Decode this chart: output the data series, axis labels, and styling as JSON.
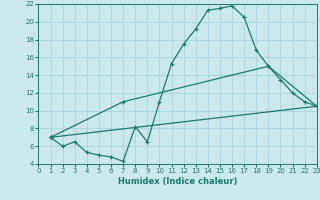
{
  "xlabel": "Humidex (Indice chaleur)",
  "bg_color": "#cce8ef",
  "line_color": "#1a7a6e",
  "grid_color": "#aad4dc",
  "xlim": [
    0,
    23
  ],
  "ylim": [
    4,
    22
  ],
  "xticks": [
    0,
    1,
    2,
    3,
    4,
    5,
    6,
    7,
    8,
    9,
    10,
    11,
    12,
    13,
    14,
    15,
    16,
    17,
    18,
    19,
    20,
    21,
    22,
    23
  ],
  "yticks": [
    4,
    6,
    8,
    10,
    12,
    14,
    16,
    18,
    20,
    22
  ],
  "line1_x": [
    1,
    2,
    3,
    4,
    5,
    6,
    7,
    8,
    9,
    10,
    11,
    12,
    13,
    14,
    15,
    16,
    17,
    18,
    19,
    20,
    21,
    22,
    23
  ],
  "line1_y": [
    7.0,
    6.0,
    6.5,
    5.3,
    5.0,
    4.8,
    4.3,
    8.2,
    6.5,
    11.0,
    15.3,
    17.5,
    19.2,
    21.3,
    21.5,
    21.8,
    20.5,
    16.8,
    15.0,
    13.5,
    12.0,
    11.0,
    10.5
  ],
  "line2_x": [
    1,
    7,
    19,
    23
  ],
  "line2_y": [
    7.0,
    11.0,
    15.0,
    10.5
  ],
  "line3_x": [
    1,
    23
  ],
  "line3_y": [
    7.0,
    10.5
  ]
}
